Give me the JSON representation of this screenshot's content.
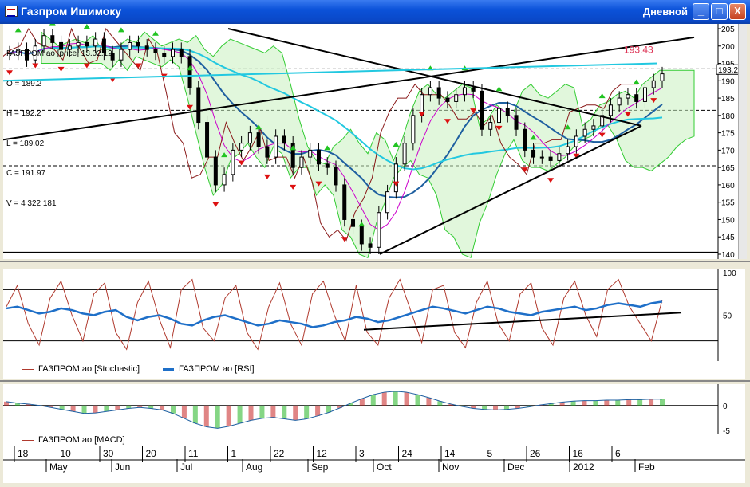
{
  "window": {
    "title": "Газпром Ишимоку",
    "period": "Дневной",
    "buttons": [
      "_",
      "□",
      "X"
    ]
  },
  "info_box": {
    "name": "ГАЗПРОМ ао [price] 13.02.12",
    "open": "O = 189.2",
    "high": "H = 192.2",
    "low": "L = 189.02",
    "close": "C = 191.97",
    "volume": "V = 4 322 181"
  },
  "price_labels": {
    "last": "193.2264",
    "level": "193.43"
  },
  "legend2": {
    "stochastic": "ГАЗПРОМ ао [Stochastic]",
    "rsi": "ГАЗПРОМ ао [RSI]"
  },
  "legend3": {
    "macd": "ГАЗПРОМ ао [MACD]"
  },
  "colors": {
    "candle": "#000000",
    "tenkan": "#8a1a1a",
    "kijun": "#cc00cc",
    "ma_fast": "#1e5fa0",
    "ma_slow": "#22c8e0",
    "cloud": "#33cc33",
    "stoch": "#b03a2e",
    "rsi": "#1e6fc8"
  },
  "chart_data": [
    {
      "type": "line",
      "title": "",
      "ylim": [
        140,
        205
      ],
      "yticks": [
        140,
        145,
        150,
        155,
        160,
        165,
        170,
        175,
        180,
        185,
        190,
        195,
        200,
        205
      ],
      "dashed_levels": [
        193.43,
        181.5,
        165.5
      ],
      "x_labels": {
        "days": [
          "18",
          "10",
          "30",
          "20",
          "11",
          "1",
          "22",
          "12",
          "3",
          "24",
          "14",
          "5",
          "26",
          "16",
          "6"
        ],
        "months": [
          "May",
          "Jun",
          "Jul",
          "Aug",
          "Sep",
          "Oct",
          "Nov",
          "Dec",
          "2012",
          "Feb"
        ]
      },
      "series": [
        {
          "values": [
            198,
            199,
            196,
            200,
            203,
            201,
            199,
            200,
            201,
            200,
            202,
            198,
            196,
            199,
            201,
            200,
            199,
            198,
            197,
            199,
            197,
            188,
            178,
            168,
            160,
            163,
            170,
            172,
            175,
            171,
            168,
            174,
            172,
            165,
            168,
            170,
            166,
            165,
            160,
            150,
            148,
            143,
            142,
            152,
            158,
            166,
            172,
            180,
            186,
            188,
            185,
            184,
            186,
            188,
            187,
            176,
            178,
            182,
            180,
            176,
            170,
            168,
            168,
            167,
            169,
            171,
            174,
            176,
            177,
            180,
            183,
            185,
            186,
            184,
            188,
            190,
            192
          ]
        }
      ]
    },
    {
      "type": "line",
      "ylim": [
        0,
        100
      ],
      "yticks": [
        50,
        100
      ],
      "levels": [
        80,
        20
      ],
      "series": [
        {
          "name": "ГАЗПРОМ ао [Stochastic]",
          "values": [
            60,
            85,
            40,
            15,
            70,
            90,
            50,
            20,
            75,
            88,
            30,
            10,
            65,
            90,
            45,
            12,
            80,
            92,
            35,
            20,
            70,
            85,
            30,
            10,
            60,
            88,
            40,
            15,
            75,
            90,
            50,
            20,
            85,
            30,
            15,
            70,
            92,
            55,
            18,
            80,
            85,
            30,
            12,
            65,
            90,
            40,
            20,
            75,
            88,
            35,
            15,
            70,
            90,
            50,
            25,
            80,
            92,
            60,
            40,
            20,
            68
          ]
        },
        {
          "name": "ГАЗПРОМ ао [RSI]",
          "values": [
            58,
            60,
            56,
            52,
            54,
            58,
            56,
            52,
            50,
            54,
            56,
            48,
            44,
            48,
            50,
            46,
            40,
            38,
            44,
            48,
            50,
            46,
            42,
            38,
            40,
            44,
            42,
            40,
            36,
            38,
            42,
            44,
            48,
            46,
            42,
            44,
            48,
            52,
            56,
            60,
            58,
            55,
            52,
            56,
            60,
            58,
            54,
            52,
            50,
            54,
            56,
            58,
            60,
            56,
            58,
            62,
            64,
            62,
            60,
            64,
            66
          ]
        }
      ]
    },
    {
      "type": "bar",
      "ylim": [
        -6,
        4
      ],
      "yticks": [
        -5,
        0
      ],
      "series": [
        {
          "name": "ГАЗПРОМ ао [MACD]",
          "values": [
            0.8,
            0.5,
            0.3,
            0.0,
            -0.4,
            -0.8,
            -1.2,
            -1.6,
            -1.5,
            -1.2,
            -0.9,
            -0.6,
            -0.4,
            -0.6,
            -0.9,
            -1.6,
            -2.6,
            -3.6,
            -4.3,
            -4.6,
            -4.2,
            -3.6,
            -3.0,
            -2.6,
            -2.4,
            -2.7,
            -3.0,
            -2.7,
            -2.1,
            -1.4,
            -0.5,
            0.5,
            1.4,
            2.2,
            2.7,
            2.9,
            2.7,
            2.2,
            1.6,
            0.9,
            0.3,
            -0.2,
            -0.6,
            -0.8,
            -0.9,
            -0.8,
            -0.6,
            -0.3,
            0.1,
            0.4,
            0.7,
            0.9,
            1.0,
            1.0,
            1.1,
            1.1,
            1.2,
            1.2,
            1.3,
            1.3
          ]
        }
      ]
    }
  ]
}
